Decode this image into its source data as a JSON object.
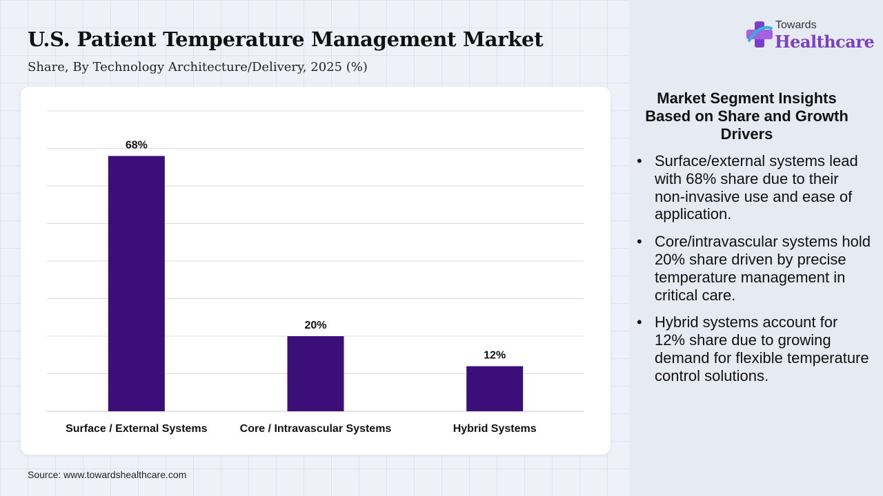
{
  "header": {
    "title": "U.S. Patient Temperature Management Market",
    "subtitle": "Share, By Technology Architecture/Delivery, 2025 (%)"
  },
  "logo": {
    "small_text": "Towards",
    "brand_text": "Healthcare",
    "icon": "medical-cross-icon"
  },
  "chart_data": {
    "type": "bar",
    "title": "U.S. Patient Temperature Management Market",
    "subtitle": "Share, By Technology Architecture/Delivery, 2025 (%)",
    "categories": [
      "Surface / External Systems",
      "Core / Intravascular Systems",
      "Hybrid Systems"
    ],
    "values": [
      68,
      20,
      12
    ],
    "value_labels": [
      "68%",
      "20%",
      "12%"
    ],
    "ylim": [
      0,
      80
    ],
    "grid": true,
    "bar_color": "#3b0e7a",
    "xlabel": "",
    "ylabel": ""
  },
  "insights": {
    "title": "Market Segment Insights Based on Share and Growth Drivers",
    "items": [
      "Surface/external systems lead with 68% share due to their non-invasive use and ease of application.",
      "Core/intravascular systems hold 20% share driven by precise temperature management in critical care.",
      "Hybrid systems account for 12% share due to growing demand for flexible temperature control solutions."
    ]
  },
  "footer": {
    "source": "Source: www.towardshealthcare.com"
  },
  "colors": {
    "brand_purple": "#7b3fc4",
    "bar": "#3b0e7a",
    "side_panel": "#e6eaf3"
  }
}
